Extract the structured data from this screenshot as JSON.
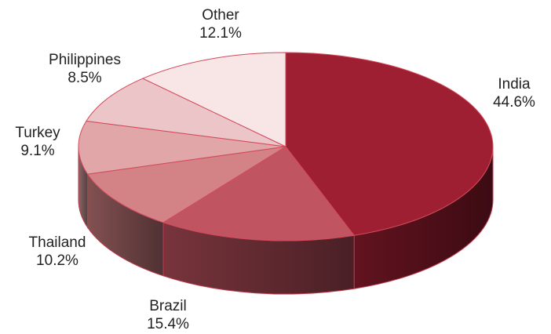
{
  "chart_data": {
    "type": "pie",
    "style": "3d",
    "title": "",
    "slices": [
      {
        "label": "India",
        "value": 44.6,
        "display": "44.6%",
        "color": "#9e1e32"
      },
      {
        "label": "Brazil",
        "value": 15.4,
        "display": "15.4%",
        "color": "#c15461"
      },
      {
        "label": "Thailand",
        "value": 10.2,
        "display": "10.2%",
        "color": "#d38285"
      },
      {
        "label": "Turkey",
        "value": 9.1,
        "display": "9.1%",
        "color": "#e0a6a8"
      },
      {
        "label": "Philippines",
        "value": 8.5,
        "display": "8.5%",
        "color": "#ebc5c7"
      },
      {
        "label": "Other",
        "value": 12.1,
        "display": "12.1%",
        "color": "#f8e5e6"
      }
    ]
  }
}
